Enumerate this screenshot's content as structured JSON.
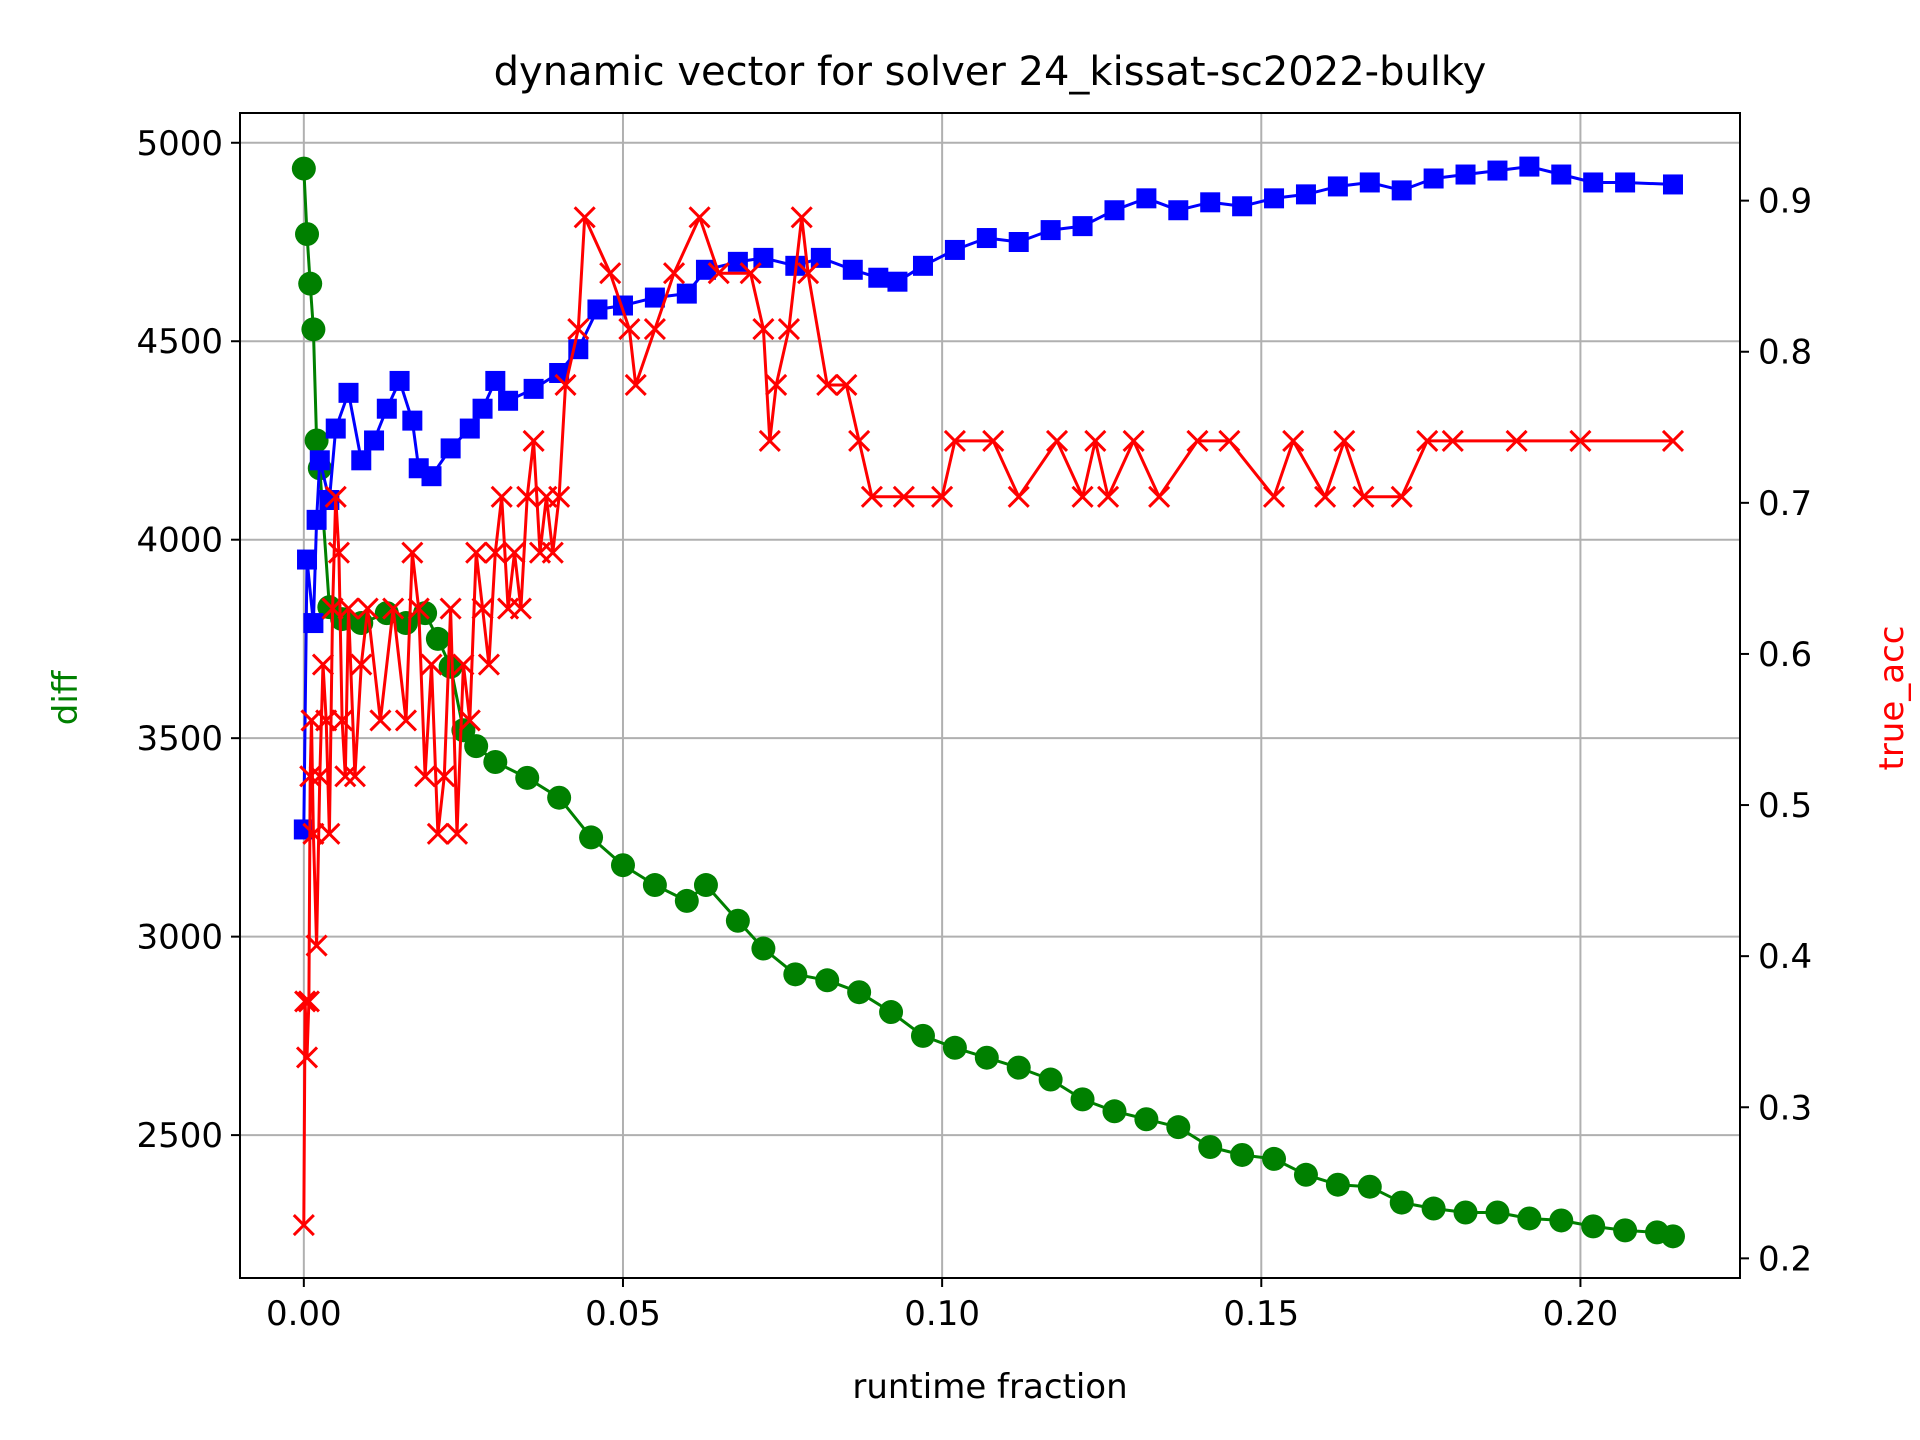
{
  "chart_data": {
    "type": "line",
    "title": "dynamic vector for solver 24_kissat-sc2022-bulky",
    "xlabel": "runtime fraction",
    "ylabel_left": "diff",
    "ylabel_right": "true_acc",
    "xlim": [
      -0.01,
      0.225
    ],
    "ylim_left": [
      2140,
      5075
    ],
    "ylim_right": [
      0.187,
      0.958
    ],
    "x_ticks": [
      0.0,
      0.05,
      0.1,
      0.15,
      0.2
    ],
    "x_tick_labels": [
      "0.00",
      "0.05",
      "0.10",
      "0.15",
      "0.20"
    ],
    "y_left_ticks": [
      2500,
      3000,
      3500,
      4000,
      4500,
      5000
    ],
    "y_left_tick_labels": [
      "2500",
      "3000",
      "3500",
      "4000",
      "4500",
      "5000"
    ],
    "y_right_ticks": [
      0.2,
      0.3,
      0.4,
      0.5,
      0.6,
      0.7,
      0.8,
      0.9
    ],
    "y_right_tick_labels": [
      "0.2",
      "0.3",
      "0.4",
      "0.5",
      "0.6",
      "0.7",
      "0.8",
      "0.9"
    ],
    "grid": true,
    "series": [
      {
        "axis": "left",
        "color": "#008000",
        "marker": "circle",
        "points": [
          [
            0.0,
            4935
          ],
          [
            0.0005,
            4770
          ],
          [
            0.001,
            4645
          ],
          [
            0.0015,
            4530
          ],
          [
            0.002,
            4250
          ],
          [
            0.0025,
            4180
          ],
          [
            0.004,
            3830
          ],
          [
            0.006,
            3800
          ],
          [
            0.009,
            3790
          ],
          [
            0.013,
            3815
          ],
          [
            0.016,
            3790
          ],
          [
            0.019,
            3815
          ],
          [
            0.021,
            3750
          ],
          [
            0.023,
            3680
          ],
          [
            0.025,
            3520
          ],
          [
            0.027,
            3480
          ],
          [
            0.03,
            3440
          ],
          [
            0.035,
            3400
          ],
          [
            0.04,
            3350
          ],
          [
            0.045,
            3250
          ],
          [
            0.05,
            3180
          ],
          [
            0.055,
            3130
          ],
          [
            0.06,
            3090
          ],
          [
            0.063,
            3130
          ],
          [
            0.068,
            3040
          ],
          [
            0.072,
            2970
          ],
          [
            0.077,
            2905
          ],
          [
            0.082,
            2890
          ],
          [
            0.087,
            2860
          ],
          [
            0.092,
            2810
          ],
          [
            0.097,
            2750
          ],
          [
            0.102,
            2720
          ],
          [
            0.107,
            2695
          ],
          [
            0.112,
            2670
          ],
          [
            0.117,
            2640
          ],
          [
            0.122,
            2590
          ],
          [
            0.127,
            2560
          ],
          [
            0.132,
            2540
          ],
          [
            0.137,
            2520
          ],
          [
            0.142,
            2470
          ],
          [
            0.147,
            2450
          ],
          [
            0.152,
            2440
          ],
          [
            0.157,
            2400
          ],
          [
            0.162,
            2375
          ],
          [
            0.167,
            2370
          ],
          [
            0.172,
            2330
          ],
          [
            0.177,
            2315
          ],
          [
            0.182,
            2305
          ],
          [
            0.187,
            2305
          ],
          [
            0.192,
            2290
          ],
          [
            0.197,
            2285
          ],
          [
            0.202,
            2270
          ],
          [
            0.207,
            2260
          ],
          [
            0.212,
            2255
          ],
          [
            0.2145,
            2245
          ]
        ]
      },
      {
        "axis": "left",
        "color": "#0000ff",
        "marker": "square",
        "points": [
          [
            0.0,
            3270
          ],
          [
            0.0005,
            3950
          ],
          [
            0.0015,
            3790
          ],
          [
            0.002,
            4050
          ],
          [
            0.0025,
            4200
          ],
          [
            0.004,
            4100
          ],
          [
            0.005,
            4280
          ],
          [
            0.007,
            4370
          ],
          [
            0.009,
            4200
          ],
          [
            0.011,
            4250
          ],
          [
            0.013,
            4330
          ],
          [
            0.015,
            4400
          ],
          [
            0.017,
            4300
          ],
          [
            0.018,
            4180
          ],
          [
            0.02,
            4160
          ],
          [
            0.023,
            4230
          ],
          [
            0.026,
            4280
          ],
          [
            0.028,
            4330
          ],
          [
            0.03,
            4400
          ],
          [
            0.032,
            4350
          ],
          [
            0.036,
            4380
          ],
          [
            0.04,
            4420
          ],
          [
            0.043,
            4480
          ],
          [
            0.046,
            4580
          ],
          [
            0.05,
            4590
          ],
          [
            0.055,
            4610
          ],
          [
            0.06,
            4620
          ],
          [
            0.063,
            4680
          ],
          [
            0.068,
            4700
          ],
          [
            0.072,
            4710
          ],
          [
            0.077,
            4690
          ],
          [
            0.081,
            4710
          ],
          [
            0.086,
            4680
          ],
          [
            0.09,
            4660
          ],
          [
            0.093,
            4650
          ],
          [
            0.097,
            4690
          ],
          [
            0.102,
            4730
          ],
          [
            0.107,
            4760
          ],
          [
            0.112,
            4750
          ],
          [
            0.117,
            4780
          ],
          [
            0.122,
            4790
          ],
          [
            0.127,
            4830
          ],
          [
            0.132,
            4860
          ],
          [
            0.137,
            4830
          ],
          [
            0.142,
            4850
          ],
          [
            0.147,
            4840
          ],
          [
            0.152,
            4860
          ],
          [
            0.157,
            4870
          ],
          [
            0.162,
            4890
          ],
          [
            0.167,
            4900
          ],
          [
            0.172,
            4880
          ],
          [
            0.177,
            4910
          ],
          [
            0.182,
            4920
          ],
          [
            0.187,
            4930
          ],
          [
            0.192,
            4940
          ],
          [
            0.197,
            4920
          ],
          [
            0.202,
            4900
          ],
          [
            0.207,
            4900
          ],
          [
            0.2145,
            4895
          ]
        ]
      },
      {
        "axis": "right",
        "color": "#ff0000",
        "marker": "x",
        "points": [
          [
            0.0,
            0.222
          ],
          [
            0.0002,
            0.37
          ],
          [
            0.0005,
            0.333
          ],
          [
            0.0008,
            0.37
          ],
          [
            0.001,
            0.519
          ],
          [
            0.0012,
            0.556
          ],
          [
            0.0015,
            0.481
          ],
          [
            0.002,
            0.407
          ],
          [
            0.0025,
            0.519
          ],
          [
            0.003,
            0.593
          ],
          [
            0.0035,
            0.556
          ],
          [
            0.004,
            0.481
          ],
          [
            0.0045,
            0.63
          ],
          [
            0.005,
            0.704
          ],
          [
            0.0055,
            0.667
          ],
          [
            0.006,
            0.556
          ],
          [
            0.0065,
            0.519
          ],
          [
            0.007,
            0.63
          ],
          [
            0.008,
            0.519
          ],
          [
            0.009,
            0.593
          ],
          [
            0.01,
            0.63
          ],
          [
            0.012,
            0.556
          ],
          [
            0.014,
            0.63
          ],
          [
            0.016,
            0.556
          ],
          [
            0.017,
            0.667
          ],
          [
            0.018,
            0.63
          ],
          [
            0.019,
            0.519
          ],
          [
            0.02,
            0.593
          ],
          [
            0.021,
            0.481
          ],
          [
            0.022,
            0.519
          ],
          [
            0.023,
            0.63
          ],
          [
            0.024,
            0.481
          ],
          [
            0.025,
            0.593
          ],
          [
            0.026,
            0.556
          ],
          [
            0.027,
            0.667
          ],
          [
            0.028,
            0.63
          ],
          [
            0.029,
            0.593
          ],
          [
            0.03,
            0.667
          ],
          [
            0.031,
            0.704
          ],
          [
            0.032,
            0.63
          ],
          [
            0.033,
            0.667
          ],
          [
            0.034,
            0.63
          ],
          [
            0.035,
            0.704
          ],
          [
            0.036,
            0.741
          ],
          [
            0.037,
            0.667
          ],
          [
            0.038,
            0.704
          ],
          [
            0.039,
            0.667
          ],
          [
            0.04,
            0.704
          ],
          [
            0.041,
            0.778
          ],
          [
            0.043,
            0.815
          ],
          [
            0.044,
            0.889
          ],
          [
            0.048,
            0.852
          ],
          [
            0.051,
            0.815
          ],
          [
            0.052,
            0.778
          ],
          [
            0.055,
            0.815
          ],
          [
            0.058,
            0.852
          ],
          [
            0.062,
            0.889
          ],
          [
            0.065,
            0.852
          ],
          [
            0.07,
            0.852
          ],
          [
            0.072,
            0.815
          ],
          [
            0.073,
            0.741
          ],
          [
            0.074,
            0.778
          ],
          [
            0.076,
            0.815
          ],
          [
            0.078,
            0.889
          ],
          [
            0.079,
            0.852
          ],
          [
            0.082,
            0.778
          ],
          [
            0.085,
            0.778
          ],
          [
            0.087,
            0.741
          ],
          [
            0.089,
            0.704
          ],
          [
            0.094,
            0.704
          ],
          [
            0.1,
            0.704
          ],
          [
            0.102,
            0.741
          ],
          [
            0.108,
            0.741
          ],
          [
            0.112,
            0.704
          ],
          [
            0.118,
            0.741
          ],
          [
            0.122,
            0.704
          ],
          [
            0.124,
            0.741
          ],
          [
            0.126,
            0.704
          ],
          [
            0.13,
            0.741
          ],
          [
            0.134,
            0.704
          ],
          [
            0.14,
            0.741
          ],
          [
            0.145,
            0.741
          ],
          [
            0.152,
            0.704
          ],
          [
            0.155,
            0.741
          ],
          [
            0.16,
            0.704
          ],
          [
            0.163,
            0.741
          ],
          [
            0.166,
            0.704
          ],
          [
            0.172,
            0.704
          ],
          [
            0.176,
            0.741
          ],
          [
            0.18,
            0.741
          ],
          [
            0.19,
            0.741
          ],
          [
            0.2,
            0.741
          ],
          [
            0.2145,
            0.741
          ]
        ]
      }
    ]
  }
}
